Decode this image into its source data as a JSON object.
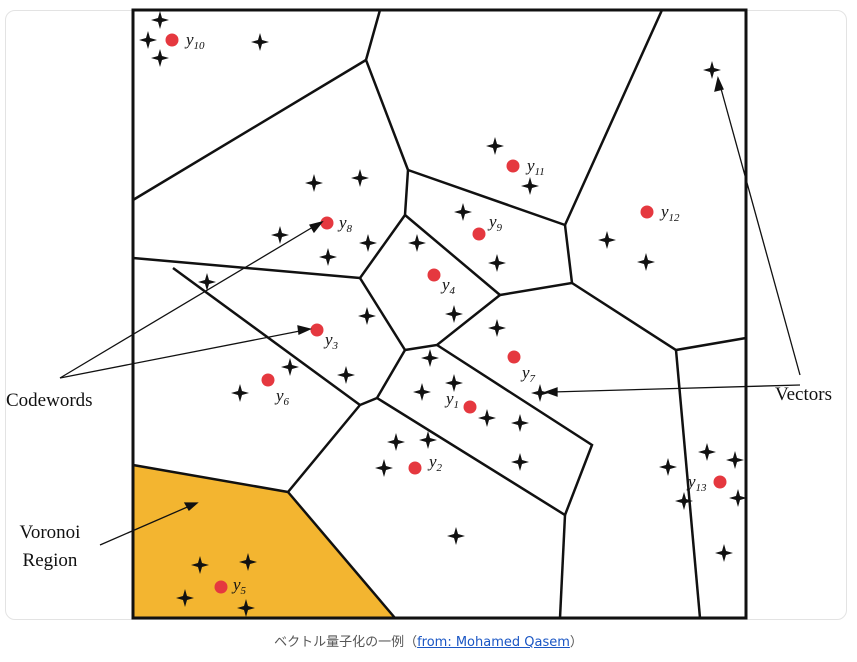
{
  "figure": {
    "codewords": [
      {
        "label": "y",
        "subscript": "1"
      },
      {
        "label": "y",
        "subscript": "2"
      },
      {
        "label": "y",
        "subscript": "3"
      },
      {
        "label": "y",
        "subscript": "4"
      },
      {
        "label": "y",
        "subscript": "5"
      },
      {
        "label": "y",
        "subscript": "6"
      },
      {
        "label": "y",
        "subscript": "7"
      },
      {
        "label": "y",
        "subscript": "8"
      },
      {
        "label": "y",
        "subscript": "9"
      },
      {
        "label": "y",
        "subscript": "10"
      },
      {
        "label": "y",
        "subscript": "11"
      },
      {
        "label": "y",
        "subscript": "12"
      },
      {
        "label": "y",
        "subscript": "13"
      }
    ],
    "annotations": {
      "codewords": "Codewords",
      "vectors": "Vectors",
      "region_line1": "Voronoi",
      "region_line2": "Region"
    }
  },
  "caption": {
    "text": "ベクトル量子化の一例（",
    "link": "from: Mohamed Qasem",
    "close": "）"
  }
}
